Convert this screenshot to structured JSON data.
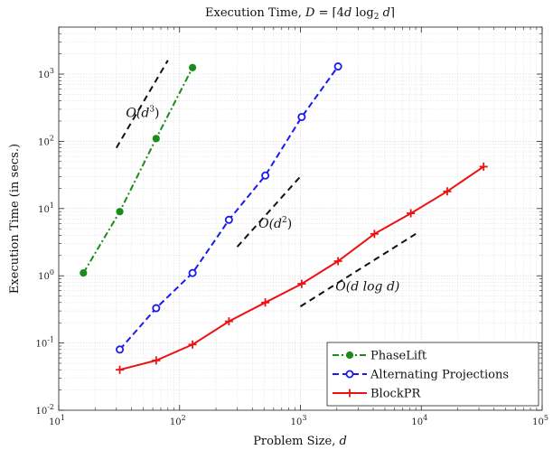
{
  "chart_data": {
    "type": "line",
    "title": "Execution Time, D = ⌈4d log₂ d⌉",
    "xlabel": "Problem Size, d",
    "ylabel": "Execution Time (in secs.)",
    "xscale": "log",
    "yscale": "log",
    "xlim": [
      10,
      100000
    ],
    "ylim": [
      0.01,
      5000
    ],
    "grid": true,
    "legend_position": "bottom-right",
    "x_ticks": [
      10,
      100,
      1000,
      10000,
      100000
    ],
    "x_tick_labels": [
      {
        "base": "10",
        "exp": "1"
      },
      {
        "base": "10",
        "exp": "2"
      },
      {
        "base": "10",
        "exp": "3"
      },
      {
        "base": "10",
        "exp": "4"
      },
      {
        "base": "10",
        "exp": "5"
      }
    ],
    "y_ticks": [
      0.01,
      0.1,
      1,
      10,
      100,
      1000
    ],
    "y_tick_labels": [
      {
        "base": "10",
        "exp": "-2"
      },
      {
        "base": "10",
        "exp": "-1"
      },
      {
        "base": "10",
        "exp": "0"
      },
      {
        "base": "10",
        "exp": "1"
      },
      {
        "base": "10",
        "exp": "2"
      },
      {
        "base": "10",
        "exp": "3"
      }
    ],
    "series": [
      {
        "name": "PhaseLift",
        "color": "#1a8c1a",
        "dash": "dashdot",
        "marker": "filled-circle",
        "x": [
          16,
          32,
          64,
          128
        ],
        "y": [
          1.1,
          9.0,
          110,
          1250
        ]
      },
      {
        "name": "Alternating Projections",
        "color": "#1a1aee",
        "dash": "dashed",
        "marker": "open-circle",
        "x": [
          32,
          64,
          128,
          256,
          512,
          1024,
          2048
        ],
        "y": [
          0.08,
          0.33,
          1.1,
          6.8,
          31,
          230,
          1300
        ]
      },
      {
        "name": "BlockPR",
        "color": "#ee1111",
        "dash": "solid",
        "marker": "plus",
        "x": [
          32,
          64,
          128,
          256,
          512,
          1024,
          2048,
          4096,
          8192,
          16384,
          32768
        ],
        "y": [
          0.04,
          0.055,
          0.095,
          0.21,
          0.4,
          0.76,
          1.65,
          4.2,
          8.5,
          18,
          42
        ]
      }
    ],
    "reference_lines": [
      {
        "label": "O(d³)",
        "x": [
          30,
          80
        ],
        "y": [
          80,
          1600
        ]
      },
      {
        "label": "O(d²)",
        "x": [
          300,
          1000
        ],
        "y": [
          2.7,
          30
        ]
      },
      {
        "label": "O(d log d)",
        "x": [
          1000,
          9000
        ],
        "y": [
          0.35,
          4.2
        ]
      }
    ],
    "annotations": [
      {
        "text": "O(d³)",
        "math": [
          "O",
          "(d",
          "3",
          ")"
        ],
        "x": 36,
        "y": 230
      },
      {
        "text": "O(d²)",
        "math": [
          "O",
          "(d",
          "2",
          ")"
        ],
        "x": 450,
        "y": 5.2
      },
      {
        "text": "O(d log d)",
        "math": [
          "O",
          "(d log d)"
        ],
        "x": 1950,
        "y": 0.6
      }
    ]
  }
}
